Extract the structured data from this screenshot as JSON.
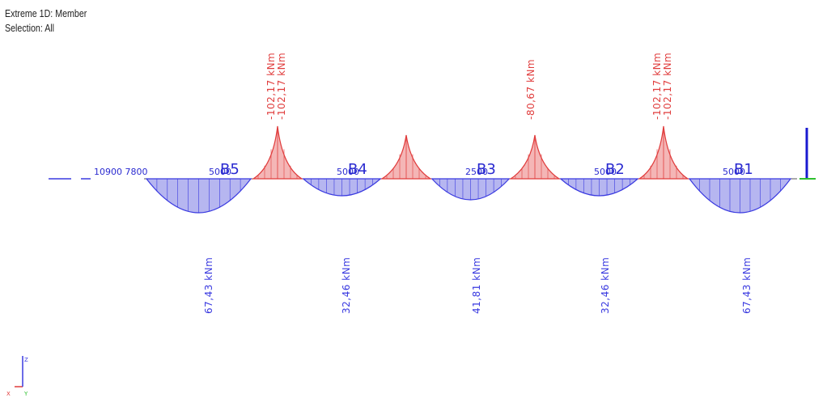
{
  "header": {
    "line1": "Extreme 1D: Member",
    "line2": "Selection: All",
    "line3": ""
  },
  "beam_labels": [
    {
      "name": "B5",
      "length": "5000"
    },
    {
      "name": "B4",
      "length": "5000"
    },
    {
      "name": "B3",
      "length": "2500"
    },
    {
      "name": "B2",
      "length": "5000"
    },
    {
      "name": "B1",
      "length": "5000"
    }
  ],
  "left_annotation": "10900 7800",
  "negative_moments": [
    {
      "text": "-102,17 kNm",
      "text2": "-102,17 kNm"
    },
    {
      "text": "-80,67 kNm"
    },
    {
      "text": "-102,17 kNm",
      "text2": "-102,17 kNm"
    }
  ],
  "positive_moments": [
    {
      "text": "67,43 kNm",
      "value": 67.43
    },
    {
      "text": "32,46 kNm",
      "value": 32.46
    },
    {
      "text": "41,81 kNm",
      "value": 41.81
    },
    {
      "text": "32,46 kNm",
      "value": 32.46
    },
    {
      "text": "67,43 kNm",
      "value": 67.43
    }
  ],
  "colors": {
    "negative": "#e03c3c",
    "negative_fill": "#f4b6b6",
    "positive": "#3a3ae0",
    "positive_fill": "#b6b6f0",
    "support": "#1a1ad0"
  },
  "axes": {
    "x": "X",
    "y": "Y",
    "z": "Z"
  }
}
